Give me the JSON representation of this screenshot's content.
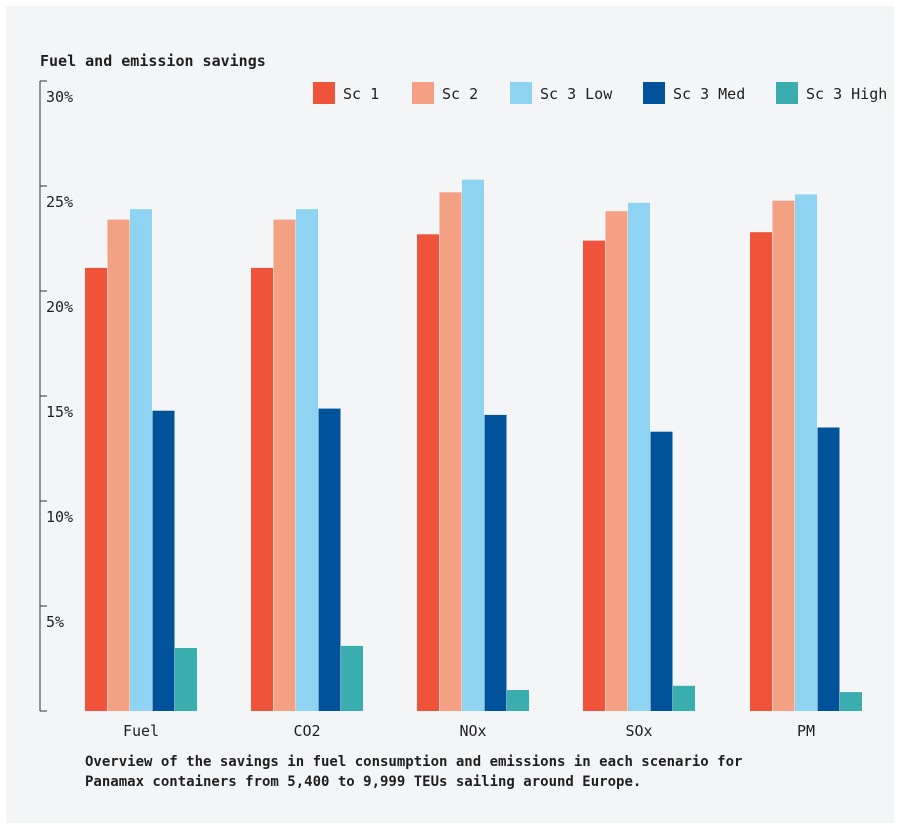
{
  "chart_data": {
    "type": "bar",
    "title": "Fuel and emission savings",
    "categories": [
      "Fuel",
      "CO2",
      "NOx",
      "SOx",
      "PM"
    ],
    "yticks": [
      "5%",
      "10%",
      "15%",
      "20%",
      "25%",
      "30%"
    ],
    "ylim": [
      0,
      30
    ],
    "grid": false,
    "legend_position": "top-right",
    "series": [
      {
        "name": "Sc 1",
        "color": "#ef533a",
        "values": [
          21.1,
          21.1,
          22.7,
          22.4,
          22.8
        ]
      },
      {
        "name": "Sc 2",
        "color": "#f4a083",
        "values": [
          23.4,
          23.4,
          24.7,
          23.8,
          24.3
        ]
      },
      {
        "name": "Sc 3 Low",
        "color": "#8ed3f2",
        "values": [
          23.9,
          23.9,
          25.3,
          24.2,
          24.6
        ]
      },
      {
        "name": "Sc 3 Med",
        "color": "#00539a",
        "values": [
          14.3,
          14.4,
          14.1,
          13.3,
          13.5
        ]
      },
      {
        "name": "Sc 3 High",
        "color": "#3aaeae",
        "values": [
          3.0,
          3.1,
          1.0,
          1.2,
          0.9
        ]
      }
    ],
    "caption_lines": [
      "Overview of the savings in fuel consumption and emissions in each scenario for",
      "Panamax containers from 5,400 to 9,999 TEUs sailing around Europe."
    ]
  }
}
